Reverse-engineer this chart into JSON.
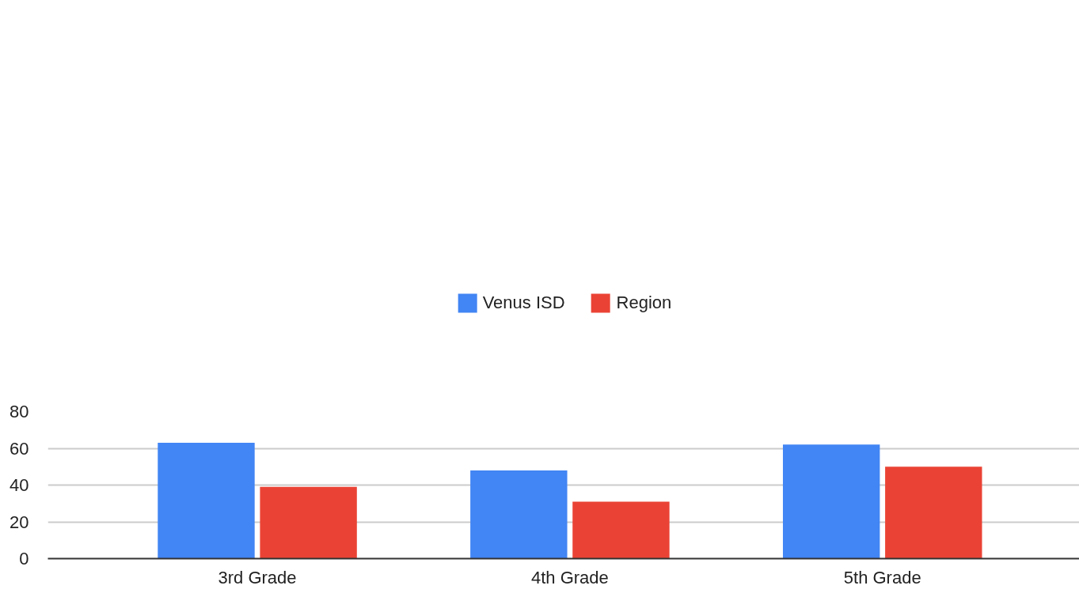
{
  "chart_data": {
    "type": "bar",
    "categories": [
      "3rd Grade",
      "4th Grade",
      "5th Grade"
    ],
    "series": [
      {
        "name": "Venus ISD",
        "color": "#4285f4",
        "values": [
          63,
          48,
          62
        ]
      },
      {
        "name": "Region",
        "color": "#ea4335",
        "values": [
          39,
          31,
          50
        ]
      }
    ],
    "ylim": [
      0,
      80
    ],
    "yticks": [
      0,
      20,
      40,
      60,
      80
    ],
    "grid": "y",
    "legend": "top"
  }
}
